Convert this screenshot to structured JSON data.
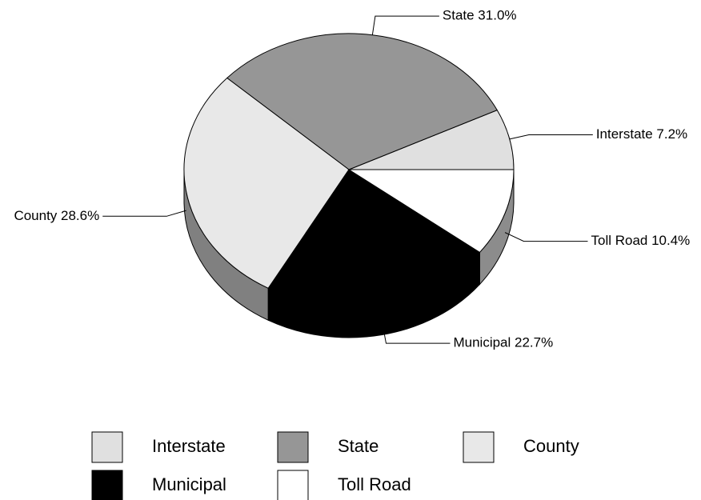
{
  "chart_data": {
    "type": "pie3d",
    "categories": [
      "Interstate",
      "State",
      "County",
      "Municipal",
      "Toll Road"
    ],
    "values": [
      7.2,
      31.0,
      28.6,
      22.7,
      10.4
    ],
    "value_labels": [
      "Interstate 7.2%",
      "State 31.0%",
      "County 28.6%",
      "Municipal 22.7%",
      "Toll Road 10.4%"
    ],
    "colors": [
      "#e0e0e0",
      "#969696",
      "#e8e8e8",
      "#000000",
      "#ffffff"
    ],
    "legend": "bottom"
  }
}
